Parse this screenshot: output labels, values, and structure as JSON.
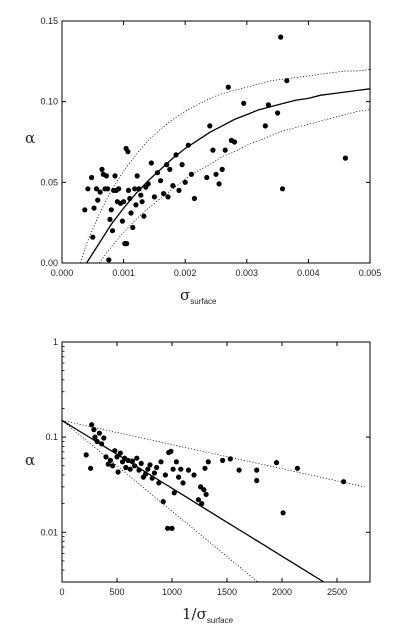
{
  "chart_data": [
    {
      "type": "scatter",
      "xlabel": "σ",
      "xlabel_sub": "surface",
      "ylabel": "α",
      "xlim": [
        0,
        0.005
      ],
      "ylim": [
        0,
        0.15
      ],
      "x_scale": "linear",
      "y_scale": "linear",
      "xticks": [
        "0.000",
        "0.001",
        "0.002",
        "0.003",
        "0.004",
        "0.005"
      ],
      "yticks": [
        "0.00",
        "0.05",
        "0.10",
        "0.15"
      ],
      "grid": false,
      "points": [
        {
          "x": 0.00037,
          "y": 0.033
        },
        {
          "x": 0.00042,
          "y": 0.046
        },
        {
          "x": 0.00048,
          "y": 0.053
        },
        {
          "x": 0.0005,
          "y": 0.016
        },
        {
          "x": 0.00052,
          "y": 0.034
        },
        {
          "x": 0.00056,
          "y": 0.046
        },
        {
          "x": 0.00058,
          "y": 0.039
        },
        {
          "x": 0.00062,
          "y": 0.044
        },
        {
          "x": 0.00065,
          "y": 0.058
        },
        {
          "x": 0.00067,
          "y": 0.055
        },
        {
          "x": 0.0007,
          "y": 0.046
        },
        {
          "x": 0.00072,
          "y": 0.054
        },
        {
          "x": 0.00074,
          "y": 0.046
        },
        {
          "x": 0.00076,
          "y": 0.002
        },
        {
          "x": 0.00078,
          "y": 0.027
        },
        {
          "x": 0.0008,
          "y": 0.033
        },
        {
          "x": 0.00082,
          "y": 0.02
        },
        {
          "x": 0.00084,
          "y": 0.045
        },
        {
          "x": 0.00086,
          "y": 0.054
        },
        {
          "x": 0.00088,
          "y": 0.045
        },
        {
          "x": 0.0009,
          "y": 0.038
        },
        {
          "x": 0.00092,
          "y": 0.046
        },
        {
          "x": 0.00095,
          "y": 0.037
        },
        {
          "x": 0.00098,
          "y": 0.026
        },
        {
          "x": 0.001,
          "y": 0.038
        },
        {
          "x": 0.00102,
          "y": 0.012
        },
        {
          "x": 0.00104,
          "y": 0.071
        },
        {
          "x": 0.00105,
          "y": 0.012
        },
        {
          "x": 0.00107,
          "y": 0.069
        },
        {
          "x": 0.00108,
          "y": 0.045
        },
        {
          "x": 0.0011,
          "y": 0.04
        },
        {
          "x": 0.00112,
          "y": 0.031
        },
        {
          "x": 0.00115,
          "y": 0.022
        },
        {
          "x": 0.00118,
          "y": 0.046
        },
        {
          "x": 0.0012,
          "y": 0.036
        },
        {
          "x": 0.00122,
          "y": 0.054
        },
        {
          "x": 0.00125,
          "y": 0.046
        },
        {
          "x": 0.00128,
          "y": 0.042
        },
        {
          "x": 0.0013,
          "y": 0.038
        },
        {
          "x": 0.00133,
          "y": 0.029
        },
        {
          "x": 0.00136,
          "y": 0.047
        },
        {
          "x": 0.0014,
          "y": 0.049
        },
        {
          "x": 0.00145,
          "y": 0.062
        },
        {
          "x": 0.0015,
          "y": 0.041
        },
        {
          "x": 0.00155,
          "y": 0.056
        },
        {
          "x": 0.0016,
          "y": 0.051
        },
        {
          "x": 0.00165,
          "y": 0.043
        },
        {
          "x": 0.0017,
          "y": 0.061
        },
        {
          "x": 0.00172,
          "y": 0.041
        },
        {
          "x": 0.00175,
          "y": 0.058
        },
        {
          "x": 0.0018,
          "y": 0.048
        },
        {
          "x": 0.00185,
          "y": 0.067
        },
        {
          "x": 0.0019,
          "y": 0.045
        },
        {
          "x": 0.00195,
          "y": 0.061
        },
        {
          "x": 0.002,
          "y": 0.05
        },
        {
          "x": 0.00205,
          "y": 0.073
        },
        {
          "x": 0.0021,
          "y": 0.055
        },
        {
          "x": 0.00215,
          "y": 0.04
        },
        {
          "x": 0.00235,
          "y": 0.053
        },
        {
          "x": 0.0024,
          "y": 0.085
        },
        {
          "x": 0.00245,
          "y": 0.07
        },
        {
          "x": 0.0025,
          "y": 0.055
        },
        {
          "x": 0.00255,
          "y": 0.049
        },
        {
          "x": 0.0026,
          "y": 0.058
        },
        {
          "x": 0.00265,
          "y": 0.07
        },
        {
          "x": 0.0027,
          "y": 0.109
        },
        {
          "x": 0.00275,
          "y": 0.076
        },
        {
          "x": 0.0028,
          "y": 0.075
        },
        {
          "x": 0.00295,
          "y": 0.099
        },
        {
          "x": 0.0033,
          "y": 0.085
        },
        {
          "x": 0.00335,
          "y": 0.098
        },
        {
          "x": 0.0035,
          "y": 0.093
        },
        {
          "x": 0.00355,
          "y": 0.14
        },
        {
          "x": 0.00358,
          "y": 0.046
        },
        {
          "x": 0.00365,
          "y": 0.113
        },
        {
          "x": 0.0046,
          "y": 0.065
        }
      ],
      "fit_lines": [
        {
          "style": "solid",
          "x": [
            0.0004,
            0.0006,
            0.0008,
            0.001,
            0.0012,
            0.0014,
            0.0016,
            0.0018,
            0.002,
            0.0022,
            0.0024,
            0.0026,
            0.0028,
            0.003,
            0.0032,
            0.0034,
            0.0036,
            0.0038,
            0.004,
            0.0042,
            0.0044,
            0.0046,
            0.0048,
            0.005
          ],
          "y": [
            0.0,
            0.012,
            0.024,
            0.034,
            0.043,
            0.051,
            0.058,
            0.065,
            0.071,
            0.076,
            0.081,
            0.085,
            0.089,
            0.092,
            0.095,
            0.097,
            0.099,
            0.101,
            0.102,
            0.104,
            0.105,
            0.106,
            0.107,
            0.108
          ]
        },
        {
          "style": "dotted",
          "x": [
            0.0003,
            0.0004,
            0.0006,
            0.0008,
            0.001,
            0.0012,
            0.0014,
            0.0016,
            0.0018,
            0.002,
            0.0022,
            0.0024,
            0.0026,
            0.0028,
            0.003,
            0.0032,
            0.0034,
            0.0036,
            0.0038,
            0.004,
            0.0042,
            0.0044,
            0.0046,
            0.0048,
            0.005
          ],
          "y": [
            0.0,
            0.012,
            0.03,
            0.045,
            0.057,
            0.067,
            0.076,
            0.083,
            0.089,
            0.094,
            0.098,
            0.102,
            0.105,
            0.107,
            0.109,
            0.111,
            0.113,
            0.114,
            0.115,
            0.116,
            0.117,
            0.118,
            0.119,
            0.119,
            0.12
          ]
        },
        {
          "style": "dotted",
          "x": [
            0.0006,
            0.0008,
            0.001,
            0.0012,
            0.0014,
            0.0016,
            0.0018,
            0.002,
            0.0022,
            0.0024,
            0.0026,
            0.0028,
            0.003,
            0.0032,
            0.0034,
            0.0036,
            0.0038,
            0.004,
            0.0042,
            0.0044,
            0.0046,
            0.0048,
            0.005
          ],
          "y": [
            0.0,
            0.01,
            0.019,
            0.027,
            0.034,
            0.04,
            0.046,
            0.052,
            0.057,
            0.061,
            0.066,
            0.069,
            0.073,
            0.076,
            0.079,
            0.082,
            0.084,
            0.086,
            0.088,
            0.09,
            0.092,
            0.094,
            0.095
          ]
        }
      ]
    },
    {
      "type": "scatter",
      "xlabel": "1/σ",
      "xlabel_sub": "surface",
      "ylabel": "α",
      "xlim": [
        0,
        2800
      ],
      "ylim": [
        0.003,
        1
      ],
      "x_scale": "linear",
      "y_scale": "log",
      "xticks": [
        "0",
        "500",
        "1000",
        "1500",
        "2000",
        "2500"
      ],
      "yticks": [
        "0.01",
        "0.1",
        "1"
      ],
      "grid": false,
      "points": [
        {
          "x": 220,
          "y": 0.065
        },
        {
          "x": 260,
          "y": 0.047
        },
        {
          "x": 270,
          "y": 0.135
        },
        {
          "x": 290,
          "y": 0.12
        },
        {
          "x": 300,
          "y": 0.1
        },
        {
          "x": 320,
          "y": 0.09
        },
        {
          "x": 340,
          "y": 0.11
        },
        {
          "x": 360,
          "y": 0.085
        },
        {
          "x": 380,
          "y": 0.098
        },
        {
          "x": 400,
          "y": 0.062
        },
        {
          "x": 420,
          "y": 0.052
        },
        {
          "x": 440,
          "y": 0.057
        },
        {
          "x": 460,
          "y": 0.05
        },
        {
          "x": 480,
          "y": 0.072
        },
        {
          "x": 500,
          "y": 0.062
        },
        {
          "x": 510,
          "y": 0.043
        },
        {
          "x": 530,
          "y": 0.068
        },
        {
          "x": 550,
          "y": 0.055
        },
        {
          "x": 570,
          "y": 0.06
        },
        {
          "x": 580,
          "y": 0.048
        },
        {
          "x": 600,
          "y": 0.057
        },
        {
          "x": 620,
          "y": 0.046
        },
        {
          "x": 640,
          "y": 0.056
        },
        {
          "x": 660,
          "y": 0.05
        },
        {
          "x": 680,
          "y": 0.06
        },
        {
          "x": 700,
          "y": 0.045
        },
        {
          "x": 720,
          "y": 0.053
        },
        {
          "x": 740,
          "y": 0.038
        },
        {
          "x": 760,
          "y": 0.041
        },
        {
          "x": 780,
          "y": 0.046
        },
        {
          "x": 800,
          "y": 0.051
        },
        {
          "x": 820,
          "y": 0.037
        },
        {
          "x": 840,
          "y": 0.042
        },
        {
          "x": 860,
          "y": 0.048
        },
        {
          "x": 880,
          "y": 0.033
        },
        {
          "x": 900,
          "y": 0.055
        },
        {
          "x": 920,
          "y": 0.021
        },
        {
          "x": 940,
          "y": 0.04
        },
        {
          "x": 960,
          "y": 0.011
        },
        {
          "x": 970,
          "y": 0.069
        },
        {
          "x": 990,
          "y": 0.071
        },
        {
          "x": 1000,
          "y": 0.011
        },
        {
          "x": 1010,
          "y": 0.046
        },
        {
          "x": 1020,
          "y": 0.026
        },
        {
          "x": 1040,
          "y": 0.055
        },
        {
          "x": 1060,
          "y": 0.038
        },
        {
          "x": 1080,
          "y": 0.046
        },
        {
          "x": 1100,
          "y": 0.033
        },
        {
          "x": 1150,
          "y": 0.045
        },
        {
          "x": 1200,
          "y": 0.04
        },
        {
          "x": 1240,
          "y": 0.022
        },
        {
          "x": 1260,
          "y": 0.03
        },
        {
          "x": 1270,
          "y": 0.02
        },
        {
          "x": 1290,
          "y": 0.028
        },
        {
          "x": 1300,
          "y": 0.047
        },
        {
          "x": 1310,
          "y": 0.025
        },
        {
          "x": 1330,
          "y": 0.055
        },
        {
          "x": 1460,
          "y": 0.057
        },
        {
          "x": 1530,
          "y": 0.059
        },
        {
          "x": 1610,
          "y": 0.045
        },
        {
          "x": 1770,
          "y": 0.045
        },
        {
          "x": 1770,
          "y": 0.035
        },
        {
          "x": 1950,
          "y": 0.054
        },
        {
          "x": 2010,
          "y": 0.016
        },
        {
          "x": 2140,
          "y": 0.047
        },
        {
          "x": 2560,
          "y": 0.034
        }
      ],
      "fit_lines": [
        {
          "style": "solid",
          "x": [
            0,
            2380
          ],
          "y": [
            0.15,
            0.003
          ]
        },
        {
          "style": "dotted",
          "x": [
            0,
            2750
          ],
          "y": [
            0.15,
            0.03
          ]
        },
        {
          "style": "dotted",
          "x": [
            0,
            1780
          ],
          "y": [
            0.15,
            0.003
          ]
        }
      ]
    }
  ]
}
